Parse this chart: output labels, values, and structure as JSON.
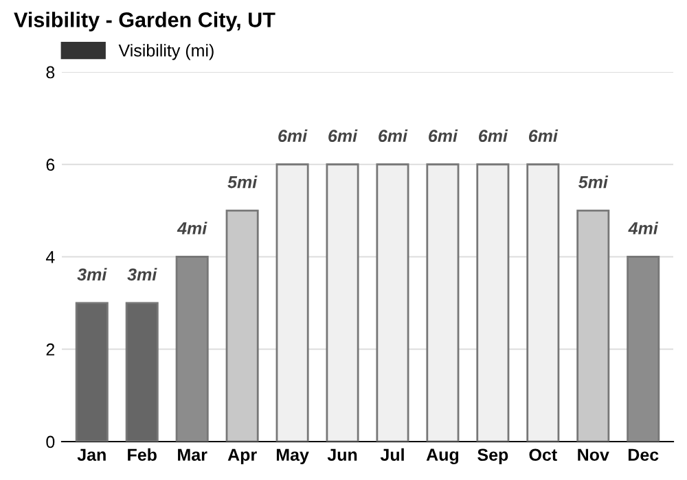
{
  "chart_data": {
    "type": "bar",
    "title": "Visibility - Garden City, UT",
    "categories": [
      "Jan",
      "Feb",
      "Mar",
      "Apr",
      "May",
      "Jun",
      "Jul",
      "Aug",
      "Sep",
      "Oct",
      "Nov",
      "Dec"
    ],
    "series": [
      {
        "name": "Visibility (mi)",
        "color": "#333333",
        "colors": [
          "#666666",
          "#666666",
          "#8c8c8c",
          "#c8c8c8",
          "#f0f0f0",
          "#f0f0f0",
          "#f0f0f0",
          "#f0f0f0",
          "#f0f0f0",
          "#f0f0f0",
          "#c8c8c8",
          "#8c8c8c"
        ],
        "values": [
          3,
          3,
          4,
          5,
          6,
          6,
          6,
          6,
          6,
          6,
          5,
          4
        ],
        "value_labels": [
          "3mi",
          "3mi",
          "4mi",
          "5mi",
          "6mi",
          "6mi",
          "6mi",
          "6mi",
          "6mi",
          "6mi",
          "5mi",
          "4mi"
        ]
      }
    ],
    "ylim": [
      0,
      8
    ],
    "yticks": [
      0,
      2,
      4,
      6,
      8
    ],
    "grid": "y",
    "legend": "top left"
  }
}
